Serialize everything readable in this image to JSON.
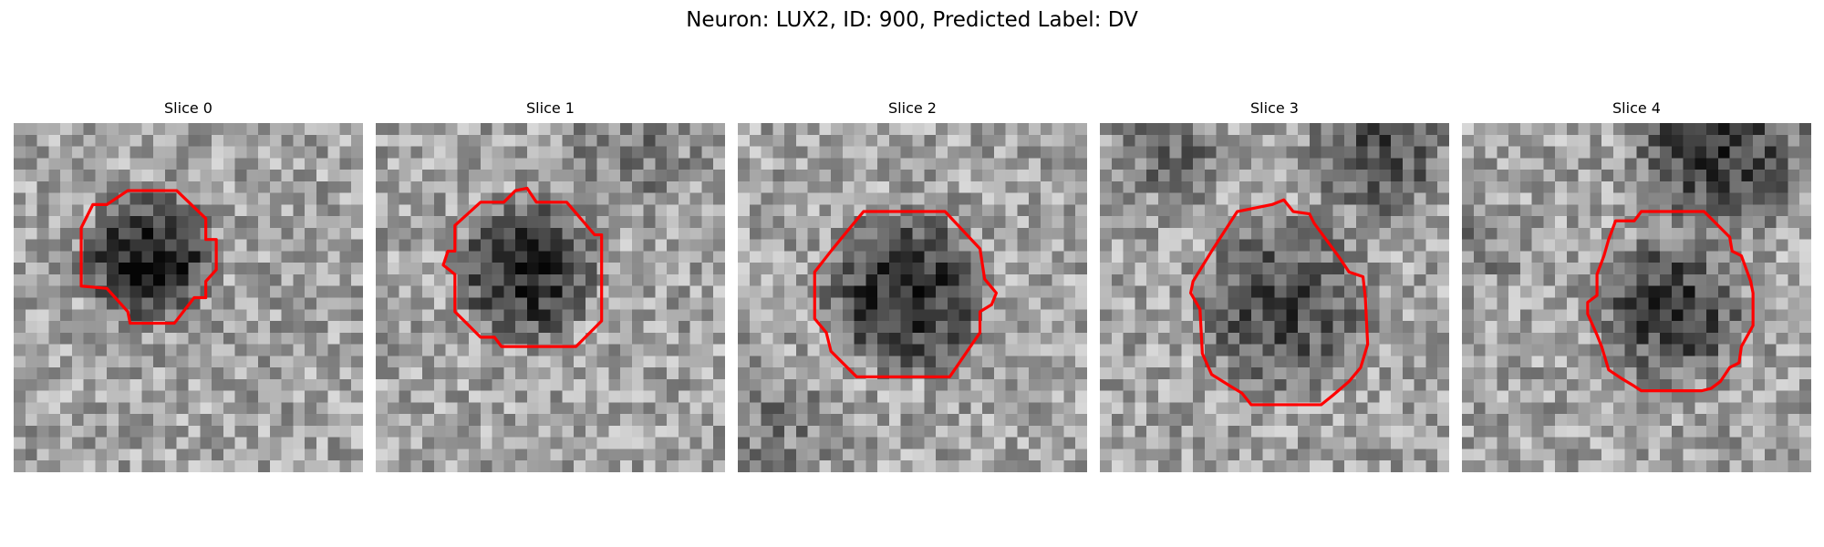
{
  "figure": {
    "title": "Neuron: LUX2, ID: 900, Predicted Label: DV",
    "colormap": "gray",
    "contour_color": "#ff0000"
  },
  "slices": [
    {
      "title": "Slice 0",
      "dark_region": "small dark octagonal blob, upper-left of center",
      "contour_shape": "octagon"
    },
    {
      "title": "Slice 1",
      "dark_region": "dark blob, left of center",
      "contour_shape": "octagon"
    },
    {
      "title": "Slice 2",
      "dark_region": "dark blob, center",
      "contour_shape": "octagon"
    },
    {
      "title": "Slice 3",
      "dark_region": "large mottled blob, center",
      "contour_shape": "polygon"
    },
    {
      "title": "Slice 4",
      "dark_region": "dark blob, center-right",
      "contour_shape": "polygon"
    }
  ]
}
